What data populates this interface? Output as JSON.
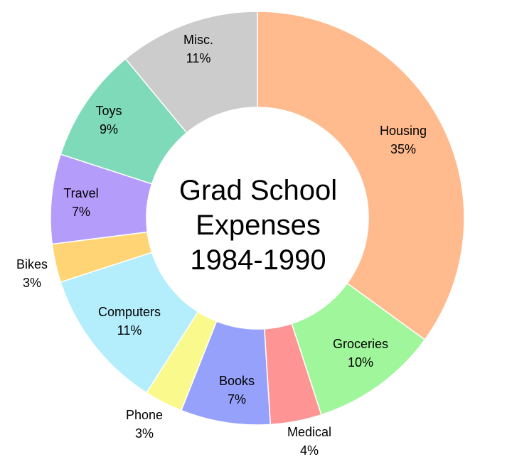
{
  "chart_data": {
    "type": "pie",
    "style": "donut",
    "title_lines": [
      "Grad School",
      "Expenses",
      "1984-1990"
    ],
    "slices": [
      {
        "label": "Housing",
        "value": 35,
        "pct": "35%",
        "color": "#FFBB8E"
      },
      {
        "label": "Groceries",
        "value": 10,
        "pct": "10%",
        "color": "#A0F69A"
      },
      {
        "label": "Medical",
        "value": 4,
        "pct": "4%",
        "color": "#FF9494"
      },
      {
        "label": "Books",
        "value": 7,
        "pct": "7%",
        "color": "#95A1FA"
      },
      {
        "label": "Phone",
        "value": 3,
        "pct": "3%",
        "color": "#FAF98B"
      },
      {
        "label": "Computers",
        "value": 11,
        "pct": "11%",
        "color": "#B4EDFC"
      },
      {
        "label": "Bikes",
        "value": 3,
        "pct": "3%",
        "color": "#FFD474"
      },
      {
        "label": "Travel",
        "value": 7,
        "pct": "7%",
        "color": "#B49CFB"
      },
      {
        "label": "Toys",
        "value": 9,
        "pct": "9%",
        "color": "#7FDAB9"
      },
      {
        "label": "Misc.",
        "value": 11,
        "pct": "11%",
        "color": "#CCCCCC"
      }
    ]
  }
}
